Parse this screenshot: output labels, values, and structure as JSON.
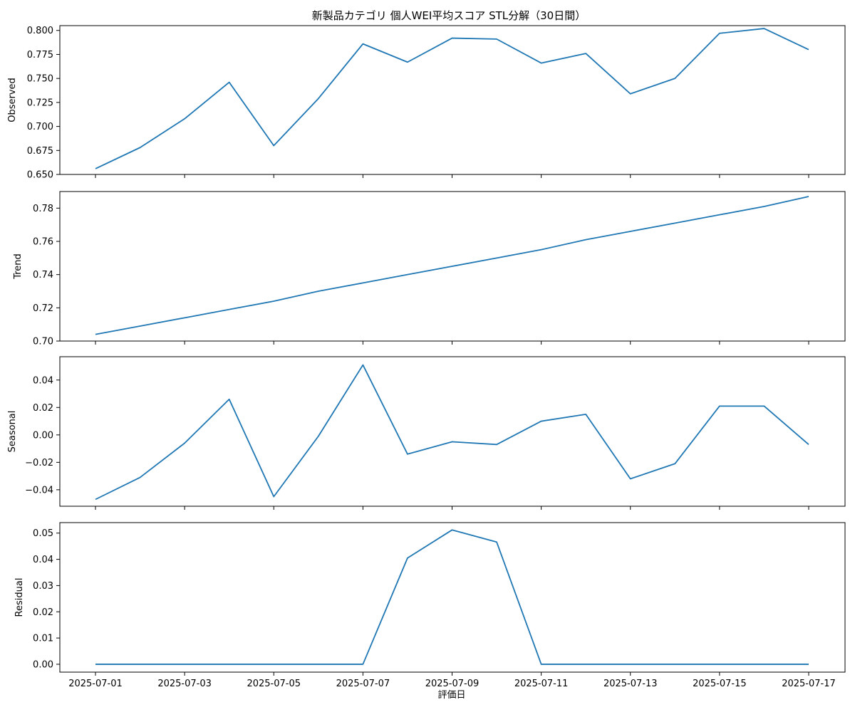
{
  "chart_data": {
    "type": "line",
    "title": "新製品カテゴリ 個人WEI平均スコア STL分解（30日間）",
    "xlabel": "評価日",
    "x": [
      "2025-07-01",
      "2025-07-02",
      "2025-07-03",
      "2025-07-04",
      "2025-07-05",
      "2025-07-06",
      "2025-07-07",
      "2025-07-08",
      "2025-07-09",
      "2025-07-10",
      "2025-07-11",
      "2025-07-12",
      "2025-07-13",
      "2025-07-14",
      "2025-07-15",
      "2025-07-16",
      "2025-07-17"
    ],
    "x_tick_labels": [
      "2025-07-01",
      "2025-07-03",
      "2025-07-05",
      "2025-07-07",
      "2025-07-09",
      "2025-07-11",
      "2025-07-13",
      "2025-07-15",
      "2025-07-17"
    ],
    "grid": false,
    "line_color": "#1f77b4",
    "panels": [
      {
        "ylabel": "Observed",
        "ylim": [
          0.65,
          0.805
        ],
        "yticks": [
          "0.650",
          "0.675",
          "0.700",
          "0.725",
          "0.750",
          "0.775",
          "0.800"
        ],
        "values": [
          0.656,
          0.678,
          0.708,
          0.746,
          0.68,
          0.729,
          0.786,
          0.767,
          0.792,
          0.791,
          0.766,
          0.776,
          0.734,
          0.75,
          0.797,
          0.802,
          0.78
        ]
      },
      {
        "ylabel": "Trend",
        "ylim": [
          0.7,
          0.79
        ],
        "yticks": [
          "0.70",
          "0.72",
          "0.74",
          "0.76",
          "0.78"
        ],
        "values": [
          0.704,
          0.709,
          0.714,
          0.719,
          0.724,
          0.73,
          0.735,
          0.74,
          0.745,
          0.75,
          0.755,
          0.761,
          0.766,
          0.771,
          0.776,
          0.781,
          0.787
        ]
      },
      {
        "ylabel": "Seasonal",
        "ylim": [
          -0.052,
          0.057
        ],
        "yticks": [
          "−0.04",
          "−0.02",
          "0.00",
          "0.02",
          "0.04"
        ],
        "values": [
          -0.047,
          -0.031,
          -0.006,
          0.026,
          -0.045,
          -0.001,
          0.051,
          -0.014,
          -0.005,
          -0.007,
          0.01,
          0.015,
          -0.032,
          -0.021,
          0.021,
          0.021,
          -0.007
        ]
      },
      {
        "ylabel": "Residual",
        "ylim": [
          -0.003,
          0.054
        ],
        "yticks": [
          "0.00",
          "0.01",
          "0.02",
          "0.03",
          "0.04",
          "0.05"
        ],
        "values": [
          0,
          0,
          0,
          0,
          0,
          0,
          0,
          0.0405,
          0.0512,
          0.0466,
          0,
          0,
          0,
          0,
          0,
          0,
          0
        ]
      }
    ]
  }
}
